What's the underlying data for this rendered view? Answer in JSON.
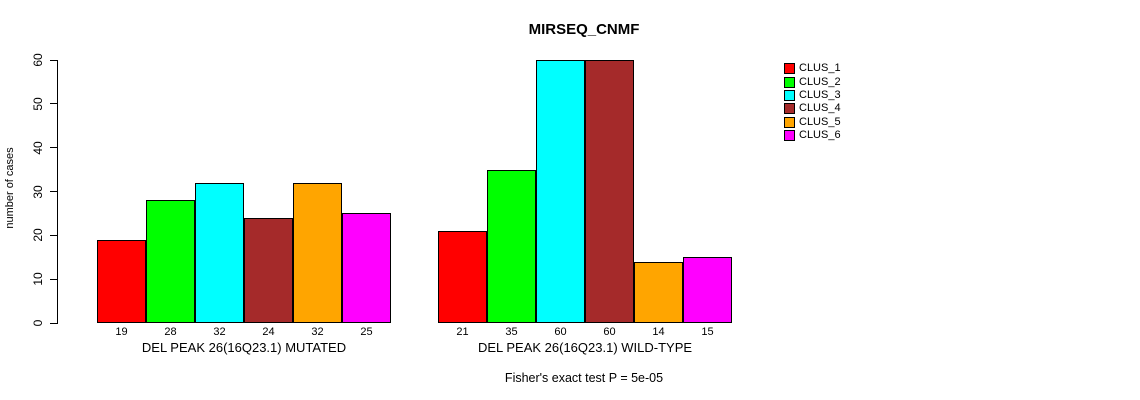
{
  "chart_data": {
    "type": "bar",
    "title": "MIRSEQ_CNMF",
    "ylabel": "number of cases",
    "xlabel": "",
    "ylim": [
      0,
      60
    ],
    "yticks": [
      0,
      10,
      20,
      30,
      40,
      50,
      60
    ],
    "grid": false,
    "legend_position": "right",
    "categories": [
      "DEL PEAK 26(16Q23.1) MUTATED",
      "DEL PEAK 26(16Q23.1) WILD-TYPE"
    ],
    "series": [
      {
        "name": "CLUS_1",
        "color": "#FF0000",
        "values": [
          19,
          21
        ]
      },
      {
        "name": "CLUS_2",
        "color": "#00FF00",
        "values": [
          28,
          35
        ]
      },
      {
        "name": "CLUS_3",
        "color": "#00FFFF",
        "values": [
          32,
          60
        ]
      },
      {
        "name": "CLUS_4",
        "color": "#A52A2A",
        "values": [
          24,
          60
        ]
      },
      {
        "name": "CLUS_5",
        "color": "#FFA500",
        "values": [
          32,
          14
        ]
      },
      {
        "name": "CLUS_6",
        "color": "#FF00FF",
        "values": [
          25,
          15
        ]
      }
    ],
    "bar_value_labels": [
      [
        19,
        28,
        32,
        24,
        32,
        25
      ],
      [
        21,
        35,
        60,
        60,
        14,
        15
      ]
    ],
    "footnote": "Fisher's exact test P = 5e-05",
    "axis_color": "#000000",
    "background_color": "#FFFFFF"
  }
}
